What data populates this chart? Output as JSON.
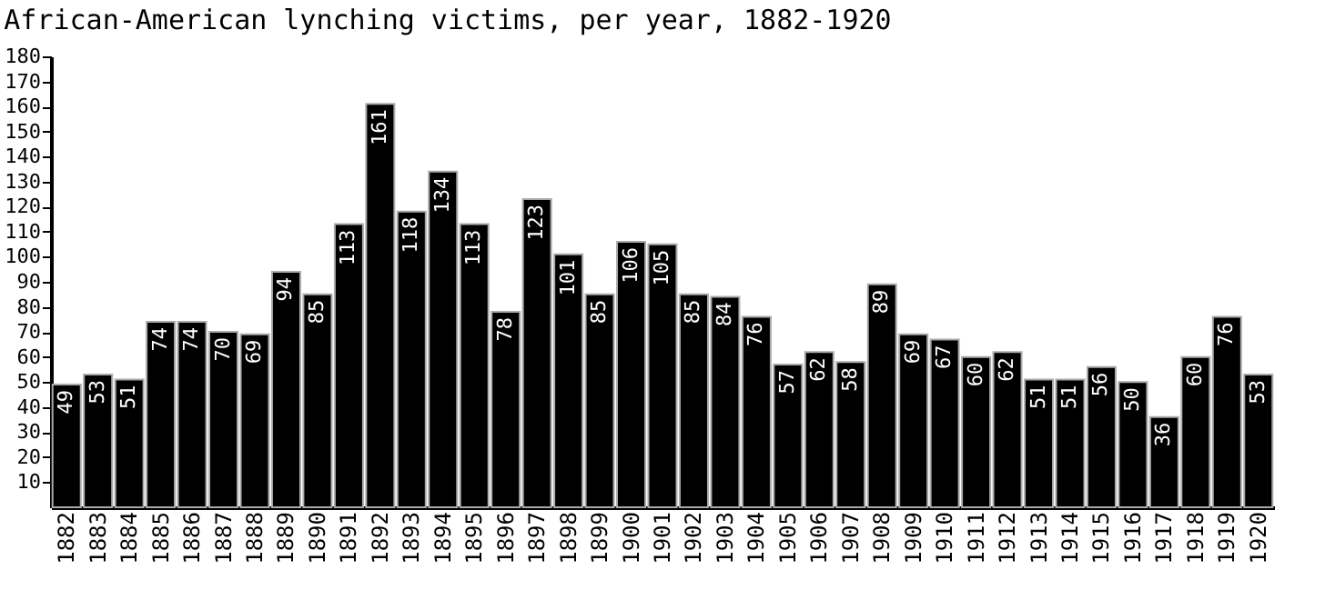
{
  "chart_data": {
    "type": "bar",
    "title": "African-American lynching victims, per year, 1882-1920",
    "categories": [
      "1882",
      "1883",
      "1884",
      "1885",
      "1886",
      "1887",
      "1888",
      "1889",
      "1890",
      "1891",
      "1892",
      "1893",
      "1894",
      "1895",
      "1896",
      "1897",
      "1898",
      "1899",
      "1900",
      "1901",
      "1902",
      "1903",
      "1904",
      "1905",
      "1906",
      "1907",
      "1908",
      "1909",
      "1910",
      "1911",
      "1912",
      "1913",
      "1914",
      "1915",
      "1916",
      "1917",
      "1918",
      "1919",
      "1920"
    ],
    "values": [
      49,
      53,
      51,
      74,
      74,
      70,
      69,
      94,
      85,
      113,
      161,
      118,
      134,
      113,
      78,
      123,
      101,
      85,
      106,
      105,
      85,
      84,
      76,
      57,
      62,
      58,
      89,
      69,
      67,
      60,
      62,
      51,
      51,
      56,
      50,
      36,
      60,
      76,
      53
    ],
    "color": "#000000",
    "ylim": [
      0,
      180
    ],
    "yticks": [
      10,
      20,
      30,
      40,
      50,
      60,
      70,
      80,
      90,
      100,
      110,
      120,
      130,
      140,
      150,
      160,
      170,
      180
    ],
    "grid": false,
    "data_labels": true
  }
}
